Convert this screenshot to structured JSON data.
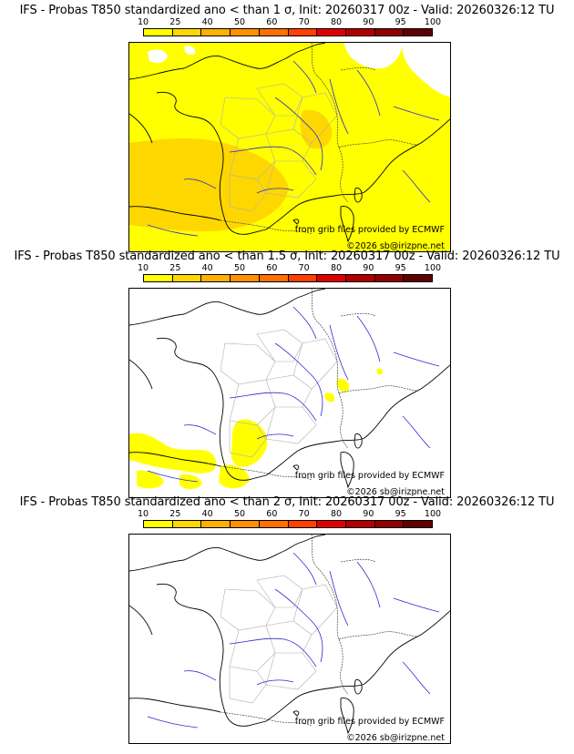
{
  "colorbar": {
    "ticks": [
      "10",
      "25",
      "40",
      "50",
      "60",
      "70",
      "80",
      "90",
      "95",
      "100"
    ],
    "colors": [
      "#ffff00",
      "#ffd700",
      "#ffb000",
      "#ff9000",
      "#ff7000",
      "#ff4000",
      "#e00000",
      "#b00000",
      "#900000",
      "#600000"
    ]
  },
  "credits": {
    "source": "from grib files provided by ECMWF",
    "copyright": "©2026 sb@irizpne.net"
  },
  "panels": [
    {
      "title": "IFS - Probas T850  standardized ano < than 1 σ, Init: 20260317 00z - Valid: 20260326:12 TU",
      "coverage": "high"
    },
    {
      "title": "IFS - Probas T850  standardized ano < than 1.5 σ, Init: 20260317 00z - Valid: 20260326:12 TU",
      "coverage": "low"
    },
    {
      "title": "IFS - Probas T850  standardized ano < than 2 σ, Init: 20260317 00z - Valid: 20260326:12 TU",
      "coverage": "none"
    }
  ]
}
